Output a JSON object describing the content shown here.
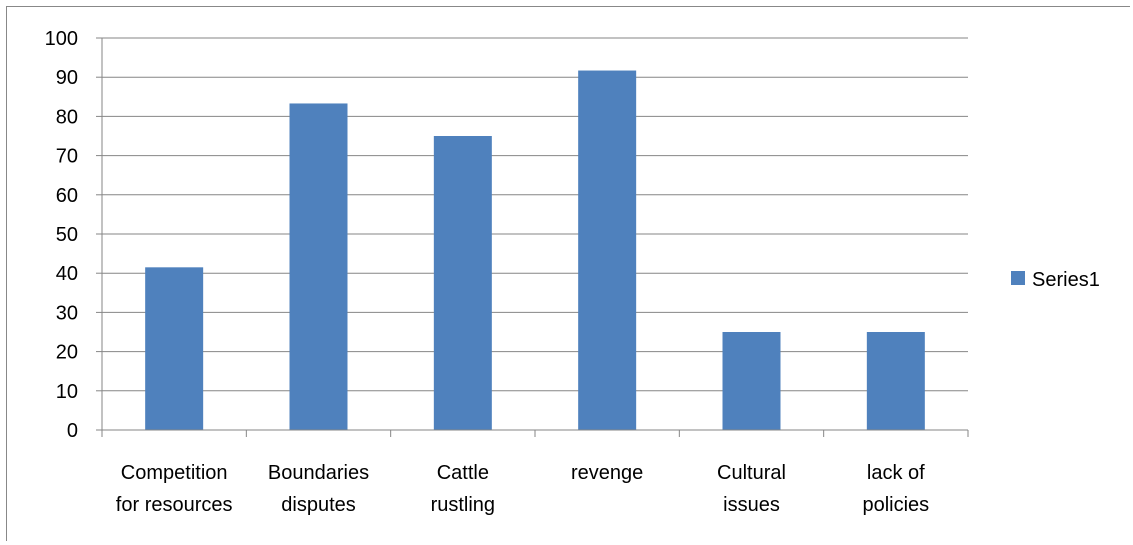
{
  "chart_data": {
    "type": "bar",
    "title": "",
    "xlabel": "",
    "ylabel": "",
    "categories": [
      [
        "Competition",
        "for resources"
      ],
      [
        "Boundaries",
        "disputes"
      ],
      [
        "Cattle",
        "rustling"
      ],
      [
        "revenge"
      ],
      [
        "Cultural",
        "issues"
      ],
      [
        "lack of",
        "policies"
      ]
    ],
    "series": [
      {
        "name": "Series1",
        "color": "#4F81BD",
        "values": [
          41.5,
          83.3,
          75.0,
          91.7,
          25.0,
          25.0
        ]
      }
    ],
    "ylim": [
      0,
      100
    ],
    "yticks": [
      "0",
      "10",
      "20",
      "30",
      "40",
      "50",
      "60",
      "70",
      "80",
      "90",
      "100"
    ],
    "grid": true,
    "legend_position": "right"
  }
}
